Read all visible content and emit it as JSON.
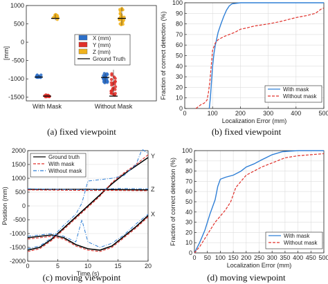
{
  "captions": {
    "a": "(a)  fixed viewpoint",
    "b": "(b)  fixed viewpoint",
    "c": "(c)  moving viewpoint",
    "d": "(d)  moving viewpoint"
  },
  "colors": {
    "x": "#2b6fc9",
    "y": "#e0302a",
    "z": "#f0b21c",
    "truth": "#000000",
    "mask": "#2f7fd6",
    "nomask": "#e0302a"
  },
  "chart_data": [
    {
      "id": "a",
      "type": "scatter",
      "title": "",
      "xlabel": "",
      "ylabel": "[mm]",
      "categories": [
        "With Mask",
        "Without Mask"
      ],
      "ylim": [
        -1600,
        1000
      ],
      "yticks": [
        "1000",
        "500",
        "0",
        "-500",
        "-1000",
        "-1500"
      ],
      "yticks_values": [
        1000,
        500,
        0,
        -500,
        -1000,
        -1500
      ],
      "legend": {
        "position": "middle-right",
        "entries": [
          "X (mm)",
          "Y (mm)",
          "Z (mm)",
          "Ground Truth"
        ]
      },
      "series": [
        {
          "name": "X (mm)",
          "with_mask": {
            "mean": -930,
            "spread": 40,
            "truth": -950
          },
          "without_mask": {
            "mean": -980,
            "spread": 140,
            "truth": -960
          }
        },
        {
          "name": "Y (mm)",
          "with_mask": {
            "mean": -1460,
            "spread": 30,
            "truth": -1470
          },
          "without_mask": {
            "mean": -1100,
            "spread": 350,
            "truth": -1470
          }
        },
        {
          "name": "Z (mm)",
          "with_mask": {
            "mean": 680,
            "spread": 80,
            "truth": 650
          },
          "without_mask": {
            "mean": 700,
            "spread": 240,
            "truth": 650
          }
        }
      ]
    },
    {
      "id": "b",
      "type": "line",
      "title": "",
      "xlabel": "Localization Error (mm)",
      "ylabel": "Fraction of correct detection  (%)",
      "xlim": [
        0,
        500
      ],
      "ylim": [
        0,
        100
      ],
      "xticks": [
        "0",
        "100",
        "200",
        "300",
        "400",
        "500"
      ],
      "xticks_values": [
        0,
        100,
        200,
        300,
        400,
        500
      ],
      "yticks": [
        "0",
        "10",
        "20",
        "30",
        "40",
        "50",
        "60",
        "70",
        "80",
        "90",
        "100"
      ],
      "yticks_values": [
        0,
        10,
        20,
        30,
        40,
        50,
        60,
        70,
        80,
        90,
        100
      ],
      "grid": true,
      "legend": {
        "position": "bottom-right"
      },
      "series": [
        {
          "name": "With mask",
          "x": [
            88,
            92,
            96,
            100,
            105,
            110,
            120,
            130,
            140,
            150,
            160,
            170,
            200,
            300,
            500
          ],
          "y": [
            0,
            10,
            25,
            40,
            52,
            60,
            72,
            80,
            87,
            93,
            97,
            99,
            100,
            100,
            100
          ]
        },
        {
          "name": "Without mask",
          "x": [
            40,
            50,
            60,
            70,
            80,
            85,
            90,
            95,
            100,
            110,
            120,
            140,
            160,
            180,
            200,
            220,
            250,
            300,
            340,
            370,
            400,
            440,
            470,
            490,
            500
          ],
          "y": [
            0,
            2,
            4,
            5,
            8,
            15,
            25,
            40,
            55,
            62,
            65,
            68,
            70,
            72,
            75,
            76,
            78,
            80,
            82,
            84,
            86,
            88,
            90,
            94,
            95
          ]
        }
      ]
    },
    {
      "id": "c",
      "type": "line",
      "title": "",
      "xlabel": "Time (s)",
      "ylabel": "Position (mm)",
      "xlim": [
        0,
        20
      ],
      "ylim": [
        -2000,
        2000
      ],
      "xticks": [
        "0",
        "5",
        "10",
        "15",
        "20"
      ],
      "xticks_values": [
        0,
        5,
        10,
        15,
        20
      ],
      "yticks": [
        "2000",
        "1500",
        "1000",
        "500",
        "0",
        "-500",
        "-1000",
        "-1500",
        "-2000"
      ],
      "yticks_values": [
        2000,
        1500,
        1000,
        500,
        0,
        -500,
        -1000,
        -1500,
        -2000
      ],
      "grid": true,
      "legend": {
        "position": "top-left",
        "entries": [
          "Ground truth",
          "With mask",
          "Without mask"
        ]
      },
      "annotations": [
        {
          "text": "Y",
          "x": 20,
          "y": 1800
        },
        {
          "text": "Z",
          "x": 20,
          "y": 600
        },
        {
          "text": "X",
          "x": 20,
          "y": -300
        }
      ],
      "series": [
        {
          "name": "Ground truth",
          "groups": [
            {
              "axis": "Y",
              "x": [
                0,
                2,
                4,
                6,
                8,
                10,
                12,
                14,
                16,
                18,
                20
              ],
              "y": [
                -1600,
                -1500,
                -1200,
                -800,
                -400,
                0,
                400,
                800,
                1150,
                1450,
                1750
              ]
            },
            {
              "axis": "Z",
              "x": [
                0,
                5,
                10,
                15,
                20
              ],
              "y": [
                600,
                600,
                600,
                590,
                580
              ]
            },
            {
              "axis": "X",
              "x": [
                0,
                2,
                4,
                6,
                8,
                10,
                12,
                14,
                16,
                18,
                20
              ],
              "y": [
                -1150,
                -1100,
                -1050,
                -1150,
                -1400,
                -1550,
                -1600,
                -1450,
                -1100,
                -750,
                -350
              ]
            }
          ]
        },
        {
          "name": "With mask",
          "groups": [
            {
              "axis": "Y",
              "x": [
                0,
                2,
                4,
                6,
                8,
                10,
                12,
                14,
                16,
                18,
                20
              ],
              "y": [
                -1650,
                -1550,
                -1250,
                -850,
                -450,
                -50,
                350,
                850,
                1200,
                1500,
                1850
              ]
            },
            {
              "axis": "Z",
              "x": [
                0,
                5,
                10,
                15,
                20
              ],
              "y": [
                580,
                570,
                560,
                560,
                550
              ]
            },
            {
              "axis": "X",
              "x": [
                0,
                2,
                4,
                6,
                8,
                10,
                12,
                14,
                16,
                18,
                20
              ],
              "y": [
                -1200,
                -1150,
                -1100,
                -1200,
                -1450,
                -1600,
                -1650,
                -1500,
                -1150,
                -800,
                -400
              ]
            }
          ]
        },
        {
          "name": "Without mask",
          "groups": [
            {
              "axis": "Y",
              "x": [
                0,
                2,
                4,
                6,
                8,
                9,
                10,
                12,
                14,
                16,
                18,
                19,
                20
              ],
              "y": [
                -1550,
                -1450,
                -1150,
                -700,
                -300,
                100,
                900,
                950,
                1000,
                1100,
                1500,
                2050,
                1900
              ]
            },
            {
              "axis": "Z",
              "x": [
                0,
                5,
                10,
                15,
                20
              ],
              "y": [
                620,
                600,
                590,
                630,
                620
              ]
            },
            {
              "axis": "X",
              "x": [
                0,
                2,
                4,
                6,
                8,
                9,
                10,
                12,
                14,
                16,
                18,
                20
              ],
              "y": [
                -1100,
                -1050,
                -1000,
                -1100,
                -1300,
                -500,
                -1300,
                -1500,
                -1350,
                -1050,
                -650,
                -300
              ]
            }
          ]
        }
      ]
    },
    {
      "id": "d",
      "type": "line",
      "title": "",
      "xlabel": "Localization Error (mm)",
      "ylabel": "Fraction of correct detection (%)",
      "xlim": [
        0,
        500
      ],
      "ylim": [
        0,
        100
      ],
      "xticks": [
        "0",
        "50",
        "100",
        "150",
        "200",
        "250",
        "300",
        "350",
        "400",
        "450",
        "500"
      ],
      "xticks_values": [
        0,
        50,
        100,
        150,
        200,
        250,
        300,
        350,
        400,
        450,
        500
      ],
      "yticks": [
        "0",
        "10",
        "20",
        "30",
        "40",
        "50",
        "60",
        "70",
        "80",
        "90",
        "100"
      ],
      "yticks_values": [
        0,
        10,
        20,
        30,
        40,
        50,
        60,
        70,
        80,
        90,
        100
      ],
      "grid": true,
      "legend": {
        "position": "bottom-right"
      },
      "series": [
        {
          "name": "With mask",
          "x": [
            0,
            20,
            40,
            60,
            80,
            90,
            100,
            120,
            150,
            180,
            200,
            230,
            260,
            300,
            340,
            400,
            500
          ],
          "y": [
            0,
            10,
            22,
            38,
            52,
            65,
            72,
            74,
            76,
            80,
            84,
            87,
            91,
            96,
            99,
            100,
            100
          ]
        },
        {
          "name": "Without mask",
          "x": [
            0,
            20,
            40,
            60,
            80,
            100,
            120,
            140,
            160,
            180,
            200,
            230,
            260,
            300,
            350,
            400,
            450,
            500
          ],
          "y": [
            0,
            6,
            14,
            22,
            30,
            36,
            42,
            50,
            64,
            70,
            76,
            80,
            84,
            88,
            93,
            95,
            96,
            97
          ]
        }
      ]
    }
  ]
}
